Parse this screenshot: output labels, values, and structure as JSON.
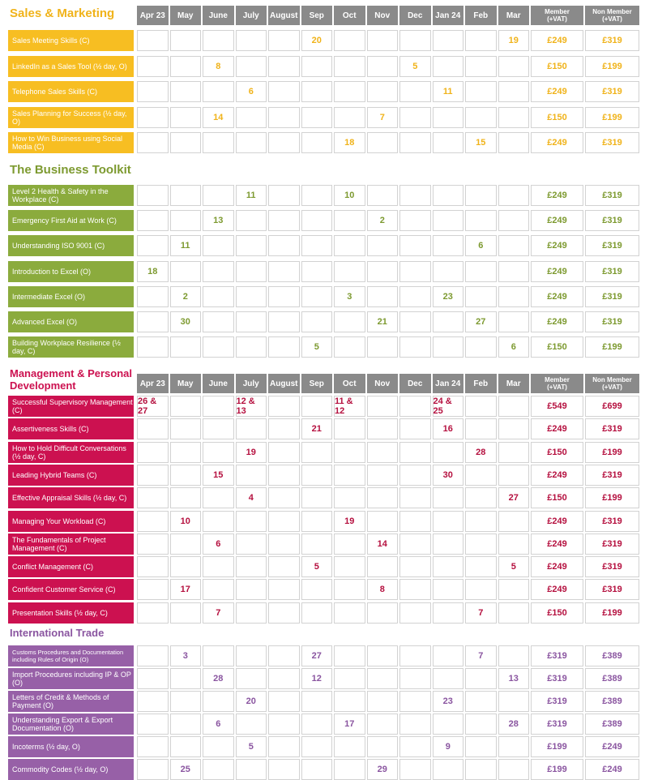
{
  "months": [
    "Apr 23",
    "May",
    "June",
    "July",
    "August",
    "Sep",
    "Oct",
    "Nov",
    "Dec",
    "Jan 24",
    "Feb",
    "Mar"
  ],
  "price_headers": {
    "member_l1": "Member",
    "member_l2": "(+VAT)",
    "nonmember_l1": "Non Member",
    "nonmember_l2": "(+VAT)"
  },
  "colors": {
    "sales": "#f7be22",
    "toolkit": "#8bab3d",
    "management": "#cc1150",
    "trade": "#9760a7",
    "header": "#8a8a8a"
  },
  "sections": {
    "sales": {
      "title": "Sales & Marketing",
      "rows": [
        {
          "label": "Sales Meeting Skills (C)",
          "dates": [
            "",
            "",
            "",
            "",
            "",
            "20",
            "",
            "",
            "",
            "",
            "",
            "19"
          ],
          "member": "£249",
          "nonmember": "£319"
        },
        {
          "label": "LinkedIn as a Sales Tool (½ day, O)",
          "dates": [
            "",
            "",
            "8",
            "",
            "",
            "",
            "",
            "",
            "5",
            "",
            "",
            ""
          ],
          "member": "£150",
          "nonmember": "£199"
        },
        {
          "label": "Telephone Sales Skills (C)",
          "dates": [
            "",
            "",
            "",
            "6",
            "",
            "",
            "",
            "",
            "",
            "11",
            "",
            ""
          ],
          "member": "£249",
          "nonmember": "£319"
        },
        {
          "label": "Sales Planning for Success (½ day, O)",
          "dates": [
            "",
            "",
            "14",
            "",
            "",
            "",
            "",
            "7",
            "",
            "",
            "",
            ""
          ],
          "member": "£150",
          "nonmember": "£199"
        },
        {
          "label": "How to Win Business using Social Media (C)",
          "dates": [
            "",
            "",
            "",
            "",
            "",
            "",
            "18",
            "",
            "",
            "",
            "15",
            ""
          ],
          "member": "£249",
          "nonmember": "£319"
        }
      ]
    },
    "toolkit": {
      "title": "The Business Toolkit",
      "rows": [
        {
          "label": "Level 2 Health & Safety in the Workplace (C)",
          "dates": [
            "",
            "",
            "",
            "11",
            "",
            "",
            "10",
            "",
            "",
            "",
            "",
            ""
          ],
          "member": "£249",
          "nonmember": "£319"
        },
        {
          "label": "Emergency First Aid at Work (C)",
          "dates": [
            "",
            "",
            "13",
            "",
            "",
            "",
            "",
            "2",
            "",
            "",
            "",
            ""
          ],
          "member": "£249",
          "nonmember": "£319"
        },
        {
          "label": "Understanding ISO 9001 (C)",
          "dates": [
            "",
            "11",
            "",
            "",
            "",
            "",
            "",
            "",
            "",
            "",
            "6",
            ""
          ],
          "member": "£249",
          "nonmember": "£319"
        },
        {
          "label": "Introduction to Excel (O)",
          "dates": [
            "18",
            "",
            "",
            "",
            "",
            "",
            "",
            "",
            "",
            "",
            "",
            ""
          ],
          "member": "£249",
          "nonmember": "£319"
        },
        {
          "label": "Intermediate Excel (O)",
          "dates": [
            "",
            "2",
            "",
            "",
            "",
            "",
            "3",
            "",
            "",
            "23",
            "",
            ""
          ],
          "member": "£249",
          "nonmember": "£319"
        },
        {
          "label": "Advanced Excel  (O)",
          "dates": [
            "",
            "30",
            "",
            "",
            "",
            "",
            "",
            "21",
            "",
            "",
            "27",
            ""
          ],
          "member": "£249",
          "nonmember": "£319"
        },
        {
          "label": "Building Workplace Resilience (½ day, C)",
          "dates": [
            "",
            "",
            "",
            "",
            "",
            "5",
            "",
            "",
            "",
            "",
            "",
            "6"
          ],
          "member": "£150",
          "nonmember": "£199"
        }
      ]
    },
    "management": {
      "title_l1": "Management & Personal",
      "title_l2": "Development",
      "rows": [
        {
          "label": "Successful Supervisory Management (C)",
          "dates": [
            "26 & 27",
            "",
            "",
            "12 & 13",
            "",
            "",
            "11 & 12",
            "",
            "",
            "24 & 25",
            "",
            ""
          ],
          "member": "£549",
          "nonmember": "£699"
        },
        {
          "label": "Assertiveness Skills (C)",
          "dates": [
            "",
            "",
            "",
            "",
            "",
            "21",
            "",
            "",
            "",
            "16",
            "",
            ""
          ],
          "member": "£249",
          "nonmember": "£319"
        },
        {
          "label": "How to Hold Difficult Conversations (½ day, C)",
          "dates": [
            "",
            "",
            "",
            "19",
            "",
            "",
            "",
            "",
            "",
            "",
            "28",
            ""
          ],
          "member": "£150",
          "nonmember": "£199"
        },
        {
          "label": "Leading Hybrid Teams (C)",
          "dates": [
            "",
            "",
            "15",
            "",
            "",
            "",
            "",
            "",
            "",
            "30",
            "",
            ""
          ],
          "member": "£249",
          "nonmember": "£319"
        },
        {
          "label": "Effective Appraisal Skills (½ day, C)",
          "dates": [
            "",
            "",
            "",
            "4",
            "",
            "",
            "",
            "",
            "",
            "",
            "",
            "27"
          ],
          "member": "£150",
          "nonmember": "£199"
        },
        {
          "label": "Managing Your Workload (C)",
          "dates": [
            "",
            "10",
            "",
            "",
            "",
            "",
            "19",
            "",
            "",
            "",
            "",
            ""
          ],
          "member": "£249",
          "nonmember": "£319"
        },
        {
          "label": "The Fundamentals of Project Management  (C)",
          "dates": [
            "",
            "",
            "6",
            "",
            "",
            "",
            "",
            "14",
            "",
            "",
            "",
            ""
          ],
          "member": "£249",
          "nonmember": "£319"
        },
        {
          "label": "Conflict Management (C)",
          "dates": [
            "",
            "",
            "",
            "",
            "",
            "5",
            "",
            "",
            "",
            "",
            "",
            "5"
          ],
          "member": "£249",
          "nonmember": "£319"
        },
        {
          "label": "Confident Customer Service (C)",
          "dates": [
            "",
            "17",
            "",
            "",
            "",
            "",
            "",
            "8",
            "",
            "",
            "",
            ""
          ],
          "member": "£249",
          "nonmember": "£319"
        },
        {
          "label": "Presentation Skills (½ day, C)",
          "dates": [
            "",
            "",
            "7",
            "",
            "",
            "",
            "",
            "",
            "",
            "",
            "7",
            ""
          ],
          "member": "£150",
          "nonmember": "£199"
        }
      ]
    },
    "trade": {
      "title": "International Trade",
      "rows": [
        {
          "label": "Customs Procedures and Documentation including Rules of Origin (O)",
          "dates": [
            "",
            "3",
            "",
            "",
            "",
            "27",
            "",
            "",
            "",
            "",
            "7",
            ""
          ],
          "member": "£319",
          "nonmember": "£389"
        },
        {
          "label": "Import Procedures including IP & OP (O)",
          "dates": [
            "",
            "",
            "28",
            "",
            "",
            "12",
            "",
            "",
            "",
            "",
            "",
            "13"
          ],
          "member": "£319",
          "nonmember": "£389"
        },
        {
          "label": "Letters of Credit & Methods of Payment (O)",
          "dates": [
            "",
            "",
            "",
            "20",
            "",
            "",
            "",
            "",
            "",
            "23",
            "",
            ""
          ],
          "member": "£319",
          "nonmember": "£389"
        },
        {
          "label": "Understanding Export & Export Documentation (O)",
          "dates": [
            "",
            "",
            "6",
            "",
            "",
            "",
            "17",
            "",
            "",
            "",
            "",
            "28"
          ],
          "member": "£319",
          "nonmember": "£389"
        },
        {
          "label": "Incoterms (½ day, O)",
          "dates": [
            "",
            "",
            "",
            "5",
            "",
            "",
            "",
            "",
            "",
            "9",
            "",
            ""
          ],
          "member": "£199",
          "nonmember": "£249"
        },
        {
          "label": "Commodity Codes (½ day, O)",
          "dates": [
            "",
            "25",
            "",
            "",
            "",
            "",
            "",
            "29",
            "",
            "",
            "",
            ""
          ],
          "member": "£199",
          "nonmember": "£249"
        }
      ]
    }
  }
}
